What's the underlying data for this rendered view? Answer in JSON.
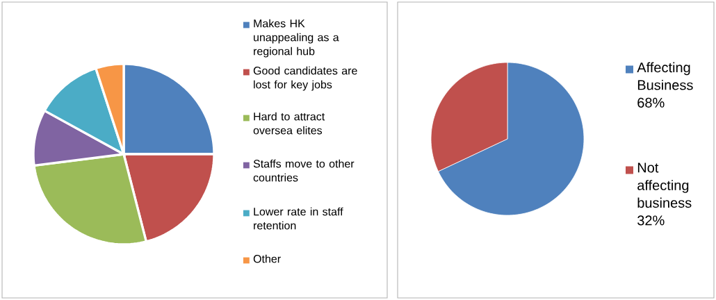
{
  "chart_data": [
    {
      "type": "pie",
      "categories": [
        "Makes HK unappealing as a regional hub",
        "Good candidates are lost for key jobs",
        "Hard to attract oversea elites",
        "Staffs move to other countries",
        "Lower rate in staff retention",
        "Other"
      ],
      "values": [
        25,
        21,
        27,
        10,
        12,
        5
      ],
      "colors": [
        "#4f81bd",
        "#c0504d",
        "#9bbb59",
        "#8064a2",
        "#4bacc6",
        "#f79646"
      ],
      "legend": "right"
    },
    {
      "type": "pie",
      "categories": [
        "Affecting Business",
        "Not affecting business"
      ],
      "values": [
        68,
        32
      ],
      "value_labels": [
        "68%",
        "32%"
      ],
      "colors": [
        "#4f81bd",
        "#c0504d"
      ],
      "legend": "right"
    }
  ]
}
